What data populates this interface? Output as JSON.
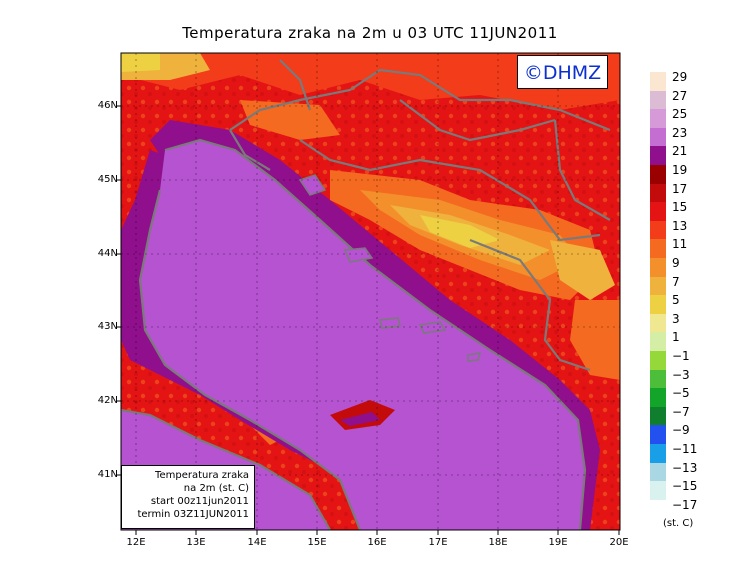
{
  "title": "Temperatura zraka na 2m u 03 UTC 11JUN2011",
  "logo": "©DHMZ",
  "info_box": {
    "line1": "Temperatura zraka",
    "line2": "na 2m (st. C)",
    "line3": "start 00z11jun2011",
    "line4": "termin 03Z11JUN2011"
  },
  "lat_labels": [
    "46N",
    "45N",
    "44N",
    "43N",
    "42N",
    "41N"
  ],
  "lon_labels": [
    "12E",
    "13E",
    "14E",
    "15E",
    "16E",
    "17E",
    "18E",
    "19E",
    "20E"
  ],
  "legend": {
    "units": "(st. C)",
    "levels": [
      "29",
      "27",
      "25",
      "23",
      "21",
      "19",
      "17",
      "15",
      "13",
      "11",
      "9",
      "7",
      "5",
      "3",
      "1",
      "−1",
      "−3",
      "−5",
      "−7",
      "−9",
      "−11",
      "−13",
      "−15",
      "−17"
    ],
    "colors": [
      "#fbe6d2",
      "#dcbcd4",
      "#d79ad8",
      "#c56ed1",
      "#8f0f8c",
      "#9a0000",
      "#c40b0b",
      "#e41414",
      "#f23c1a",
      "#f46a20",
      "#f3902c",
      "#efb23c",
      "#edd142",
      "#efe890",
      "#d4eea6",
      "#94d839",
      "#4cbe3a",
      "#13a529",
      "#0f7f2e",
      "#2251ef",
      "#189fe8",
      "#a9d8e4",
      "#d9f2ef",
      "#f4fbfb"
    ]
  },
  "map": {
    "sea_color": "#b553d1",
    "land_colors": [
      "#f23c1a",
      "#e41414",
      "#c40b0b",
      "#f46a20",
      "#f3902c",
      "#efb23c",
      "#edd142",
      "#8f0f8c"
    ],
    "border_color": "#7a7a7a"
  }
}
